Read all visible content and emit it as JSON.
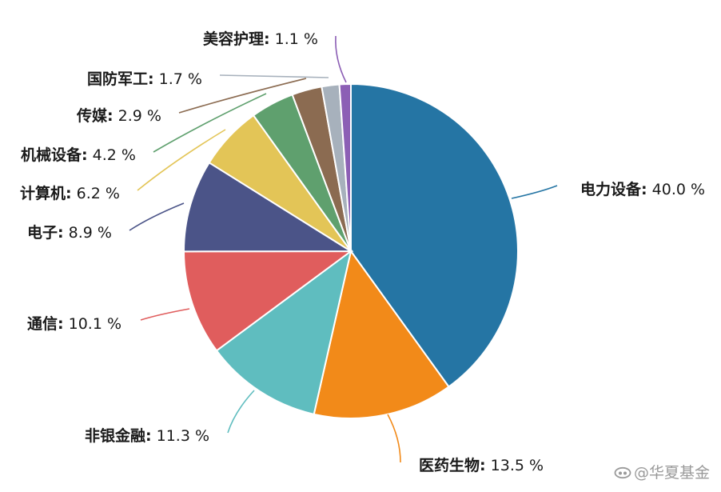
{
  "chart_data": {
    "type": "pie",
    "slices": [
      {
        "label": "电力设备",
        "value": 40.0,
        "display": "40.0 %",
        "color": "#2575a4"
      },
      {
        "label": "医药生物",
        "value": 13.5,
        "display": "13.5 %",
        "color": "#f28a19"
      },
      {
        "label": "非银金融",
        "value": 11.3,
        "display": "11.3 %",
        "color": "#5fbdbf"
      },
      {
        "label": "通信",
        "value": 10.1,
        "display": "10.1 %",
        "color": "#e05d5d"
      },
      {
        "label": "电子",
        "value": 8.9,
        "display": "8.9 %",
        "color": "#4b5488"
      },
      {
        "label": "计算机",
        "value": 6.2,
        "display": "6.2 %",
        "color": "#e3c557"
      },
      {
        "label": "机械设备",
        "value": 4.2,
        "display": "4.2 %",
        "color": "#5fa06e"
      },
      {
        "label": "传媒",
        "value": 2.9,
        "display": "2.9 %",
        "color": "#8b6b51"
      },
      {
        "label": "国防军工",
        "value": 1.7,
        "display": "1.7 %",
        "color": "#a7b1bc"
      },
      {
        "label": "美容护理",
        "value": 1.1,
        "display": "1.1 %",
        "color": "#8c5fb5"
      }
    ]
  },
  "watermark": {
    "text": "@华夏基金"
  }
}
